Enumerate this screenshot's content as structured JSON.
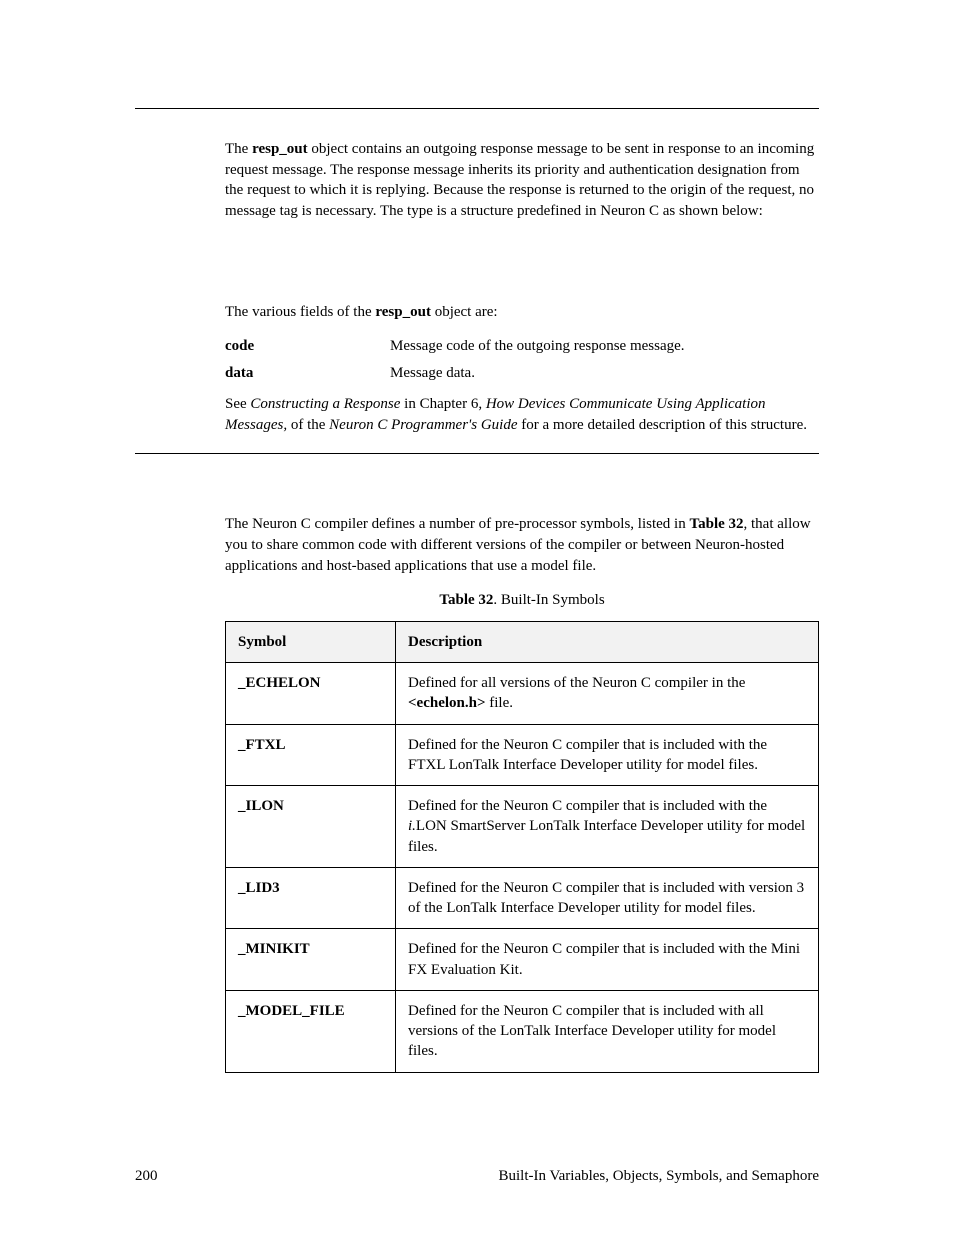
{
  "intro": {
    "text_parts": [
      {
        "t": "The "
      },
      {
        "t": "resp_out",
        "bold": true
      },
      {
        "t": " object contains an outgoing response message to be sent in response to an incoming request message.  The response message inherits its priority and authentication designation from the request to which it is replying.  Because the response is returned to the origin of the request, no message tag is necessary. The type is a structure predefined in Neuron C as shown below:"
      }
    ]
  },
  "fields_intro_parts": [
    {
      "t": "The various fields of the "
    },
    {
      "t": "resp_out",
      "bold": true
    },
    {
      "t": " object are:"
    }
  ],
  "fields": [
    {
      "label": "code",
      "desc": "Message code of the outgoing response message."
    },
    {
      "label": "data",
      "desc": "Message data."
    }
  ],
  "see_parts": [
    {
      "t": "See "
    },
    {
      "t": "Constructing a Response",
      "italic": true
    },
    {
      "t": " in Chapter 6, "
    },
    {
      "t": "How Devices Communicate Using Application Messages,",
      "italic": true
    },
    {
      "t": " of the "
    },
    {
      "t": "Neuron C Programmer's Guide",
      "italic": true
    },
    {
      "t": " for a more detailed description of this structure."
    }
  ],
  "section2_parts": [
    {
      "t": "The Neuron C compiler defines a number of pre-processor symbols, listed in "
    },
    {
      "t": "Table 32",
      "bold": true
    },
    {
      "t": ", that allow you to share common code with different versions of the compiler or between Neuron-hosted applications and host-based applications that use a model file."
    }
  ],
  "table_caption_parts": [
    {
      "t": "Table 32",
      "bold": true
    },
    {
      "t": ". Built-In Symbols"
    }
  ],
  "table": {
    "headers": [
      "Symbol",
      "Description"
    ],
    "rows": [
      {
        "sym": "_ECHELON",
        "desc_parts": [
          {
            "t": "Defined for all versions of the Neuron C compiler in the "
          },
          {
            "t": "<echelon.h>",
            "bold": true
          },
          {
            "t": " file."
          }
        ]
      },
      {
        "sym": "_FTXL",
        "desc_parts": [
          {
            "t": "Defined for the Neuron C compiler that is included with the FTXL LonTalk Interface Developer utility for model files."
          }
        ]
      },
      {
        "sym": "_ILON",
        "desc_parts": [
          {
            "t": "Defined for the Neuron C compiler that is included with the "
          },
          {
            "t": "i.",
            "italic": true
          },
          {
            "t": "LON SmartServer LonTalk Interface Developer utility for model files."
          }
        ]
      },
      {
        "sym": "_LID3",
        "desc_parts": [
          {
            "t": "Defined for the Neuron C compiler that is included with version 3 of the LonTalk Interface Developer utility for model files."
          }
        ]
      },
      {
        "sym": "_MINIKIT",
        "desc_parts": [
          {
            "t": "Defined for the Neuron C compiler that is included with the Mini FX Evaluation Kit."
          }
        ]
      },
      {
        "sym": "_MODEL_FILE",
        "desc_parts": [
          {
            "t": "Defined for the Neuron C compiler that is included with all versions of the LonTalk Interface Developer utility for model files."
          }
        ]
      }
    ]
  },
  "footer": {
    "page": "200",
    "title": "Built-In Variables, Objects, Symbols, and Semaphore"
  }
}
